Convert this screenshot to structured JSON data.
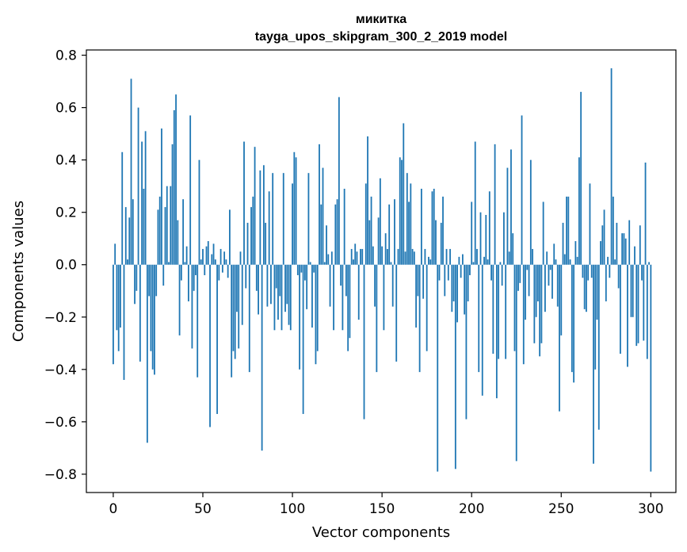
{
  "chart_data": {
    "type": "bar",
    "title": "микитка",
    "subtitle": "tayga_upos_skipgram_300_2_2019 model",
    "xlabel": "Vector components",
    "ylabel": "Components values",
    "xlim": [
      -15,
      314
    ],
    "ylim": [
      -0.87,
      0.82
    ],
    "xticks": [
      0,
      50,
      100,
      150,
      200,
      250,
      300
    ],
    "xtick_labels": [
      "0",
      "50",
      "100",
      "150",
      "200",
      "250",
      "300"
    ],
    "yticks": [
      -0.8,
      -0.6,
      -0.4,
      -0.2,
      0.0,
      0.2,
      0.4,
      0.6,
      0.8
    ],
    "ytick_labels": [
      "−0.8",
      "−0.6",
      "−0.4",
      "−0.2",
      "0.0",
      "0.2",
      "0.4",
      "0.6",
      "0.8"
    ],
    "grid": false,
    "bar_color": "#1f77b4",
    "x_start": 0,
    "values": [
      -0.38,
      0.08,
      -0.25,
      -0.33,
      -0.24,
      0.43,
      -0.44,
      0.22,
      0.02,
      0.18,
      0.71,
      0.25,
      -0.15,
      -0.1,
      0.6,
      -0.37,
      0.47,
      0.29,
      0.51,
      -0.68,
      -0.12,
      -0.33,
      -0.4,
      -0.42,
      -0.12,
      0.21,
      0.26,
      0.52,
      -0.08,
      0.22,
      0.3,
      0.01,
      0.3,
      0.46,
      0.59,
      0.65,
      0.17,
      -0.27,
      -0.06,
      0.25,
      0.01,
      0.07,
      -0.14,
      0.57,
      -0.32,
      -0.1,
      -0.04,
      -0.43,
      0.4,
      0.02,
      0.06,
      -0.04,
      0.07,
      0.09,
      -0.62,
      0.04,
      0.08,
      0.02,
      -0.57,
      -0.06,
      0.06,
      -0.03,
      0.05,
      0.02,
      -0.05,
      0.21,
      -0.43,
      -0.33,
      -0.36,
      -0.18,
      -0.32,
      0.05,
      -0.23,
      0.47,
      -0.09,
      0.16,
      -0.41,
      0.22,
      0.26,
      0.45,
      -0.1,
      -0.19,
      0.36,
      -0.71,
      0.38,
      0.16,
      -0.16,
      0.28,
      -0.15,
      0.35,
      -0.25,
      -0.09,
      -0.21,
      -0.12,
      -0.25,
      0.35,
      -0.18,
      -0.15,
      -0.23,
      -0.25,
      0.31,
      0.43,
      0.41,
      -0.04,
      -0.4,
      -0.03,
      -0.57,
      -0.06,
      -0.17,
      0.35,
      0.01,
      -0.24,
      -0.03,
      -0.38,
      -0.33,
      0.46,
      0.23,
      0.37,
      0.01,
      0.15,
      0.04,
      -0.16,
      0.05,
      -0.25,
      0.23,
      0.25,
      0.64,
      -0.08,
      -0.25,
      0.29,
      -0.12,
      -0.33,
      -0.28,
      0.06,
      0.02,
      0.08,
      0.05,
      -0.21,
      0.06,
      0.06,
      -0.59,
      0.31,
      0.49,
      0.17,
      0.26,
      0.07,
      -0.16,
      -0.41,
      0.18,
      0.33,
      0.07,
      -0.25,
      0.12,
      0.06,
      0.23,
      0.01,
      -0.16,
      0.25,
      -0.37,
      0.06,
      0.41,
      0.4,
      0.54,
      0.05,
      0.35,
      0.24,
      0.31,
      0.06,
      0.05,
      -0.24,
      -0.12,
      -0.41,
      0.29,
      -0.13,
      0.06,
      -0.33,
      0.03,
      0.02,
      0.28,
      0.29,
      0.17,
      -0.79,
      -0.06,
      0.16,
      0.26,
      -0.12,
      0.06,
      -0.06,
      0.06,
      -0.18,
      -0.14,
      -0.78,
      -0.22,
      0.03,
      -0.05,
      0.04,
      -0.19,
      -0.59,
      -0.14,
      -0.04,
      0.24,
      0.01,
      0.47,
      0.06,
      -0.41,
      0.2,
      -0.5,
      0.03,
      0.19,
      0.02,
      0.28,
      -0.06,
      -0.34,
      0.46,
      -0.51,
      -0.36,
      0.01,
      -0.08,
      0.2,
      -0.36,
      0.37,
      0.05,
      0.44,
      0.12,
      -0.33,
      -0.75,
      -0.1,
      -0.07,
      0.57,
      -0.38,
      -0.21,
      -0.02,
      -0.12,
      0.4,
      0.06,
      -0.3,
      -0.2,
      -0.14,
      -0.35,
      -0.3,
      0.24,
      -0.18,
      0.05,
      -0.08,
      -0.02,
      -0.13,
      0.08,
      0.02,
      -0.16,
      -0.56,
      -0.27,
      0.16,
      0.04,
      0.26,
      0.26,
      0.02,
      -0.41,
      -0.45,
      0.09,
      0.03,
      0.41,
      0.66,
      -0.05,
      -0.17,
      -0.18,
      -0.06,
      0.31,
      -0.05,
      -0.76,
      -0.4,
      -0.21,
      -0.63,
      0.09,
      0.15,
      0.21,
      -0.14,
      0.03,
      -0.05,
      0.75,
      0.26,
      0.02,
      0.16,
      -0.09,
      -0.34,
      0.12,
      0.12,
      0.1,
      -0.39,
      0.17,
      -0.2,
      -0.2,
      0.07,
      -0.31,
      -0.3,
      0.15,
      -0.06,
      -0.29,
      0.39,
      -0.36,
      0.01,
      -0.79
    ]
  }
}
